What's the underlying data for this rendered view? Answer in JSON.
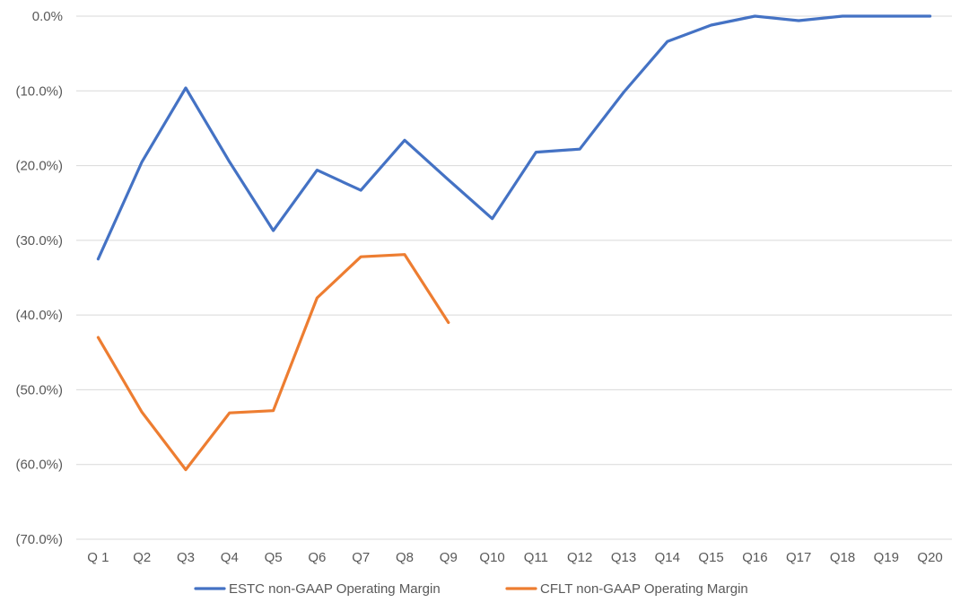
{
  "chart_data": {
    "type": "line",
    "title": "",
    "xlabel": "",
    "ylabel": "",
    "categories": [
      "Q 1",
      "Q2",
      "Q3",
      "Q4",
      "Q5",
      "Q6",
      "Q7",
      "Q8",
      "Q9",
      "Q10",
      "Q11",
      "Q12",
      "Q13",
      "Q14",
      "Q15",
      "Q16",
      "Q17",
      "Q18",
      "Q19",
      "Q20"
    ],
    "ylim": [
      -70,
      0
    ],
    "yticks": [
      0,
      -10,
      -20,
      -30,
      -40,
      -50,
      -60,
      -70
    ],
    "ytick_labels": [
      "0.0%",
      "(10.0%)",
      "(20.0%)",
      "(30.0%)",
      "(40.0%)",
      "(50.0%)",
      "(60.0%)",
      "(70.0%)"
    ],
    "grid": true,
    "legend_position": "bottom",
    "series": [
      {
        "name": "ESTC non-GAAP Operating Margin",
        "color": "#4472C4",
        "values": [
          -32.5,
          -19.5,
          -9.6,
          -19.5,
          -28.7,
          -20.6,
          -23.3,
          -16.6,
          -21.9,
          -27.1,
          -18.2,
          -17.8,
          -10.2,
          -3.4,
          -1.2,
          0.0,
          -0.6,
          0.0,
          0.0,
          0.0
        ]
      },
      {
        "name": "CFLT non-GAAP Operating Margin",
        "color": "#ED7D31",
        "values": [
          -43.0,
          -53.0,
          -60.7,
          -53.1,
          -52.8,
          -37.7,
          -32.2,
          -31.9,
          -41.0,
          null,
          null,
          null,
          null,
          null,
          null,
          null,
          null,
          null,
          null,
          null
        ]
      }
    ]
  }
}
